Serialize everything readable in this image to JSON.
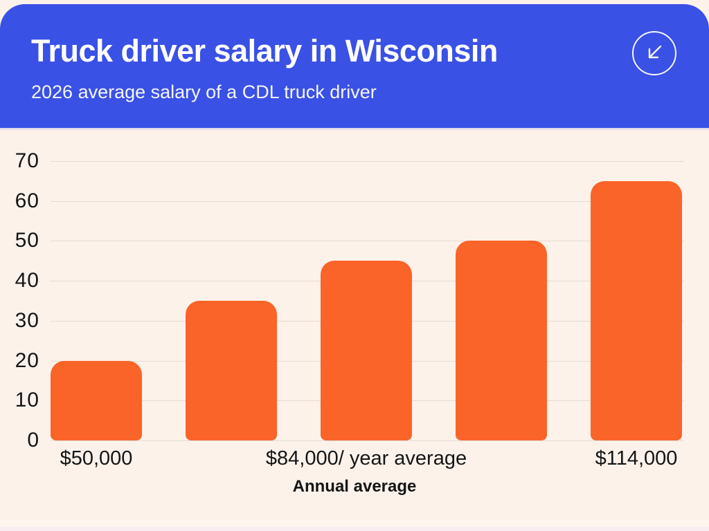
{
  "header": {
    "title": "Truck driver salary in Wisconsin",
    "subtitle": "2026 average salary of a CDL truck driver",
    "background_color": "#3A51E5",
    "text_color": "#FFFFFF",
    "icon": "arrow-down-left-icon"
  },
  "chart_data": {
    "type": "bar",
    "values": [
      20,
      35,
      45,
      50,
      65
    ],
    "categories": [
      "$50,000",
      "",
      "$84,000/ year average",
      "",
      "$114,000"
    ],
    "x_tick_labels": [
      {
        "index": 0,
        "text": "$50,000"
      },
      {
        "index": 2,
        "text": "$84,000/ year average"
      },
      {
        "index": 4,
        "text": "$114,000"
      }
    ],
    "xlabel": "Annual average",
    "ylabel": "",
    "y_ticks": [
      0,
      10,
      20,
      30,
      40,
      50,
      60,
      70
    ],
    "ylim": [
      0,
      70
    ],
    "grid": true,
    "legend": false,
    "bar_color": "#FA6428",
    "plot_background": "#FCF2EA",
    "gridline_color": "#E2DCD4",
    "label_color": "#151515"
  }
}
